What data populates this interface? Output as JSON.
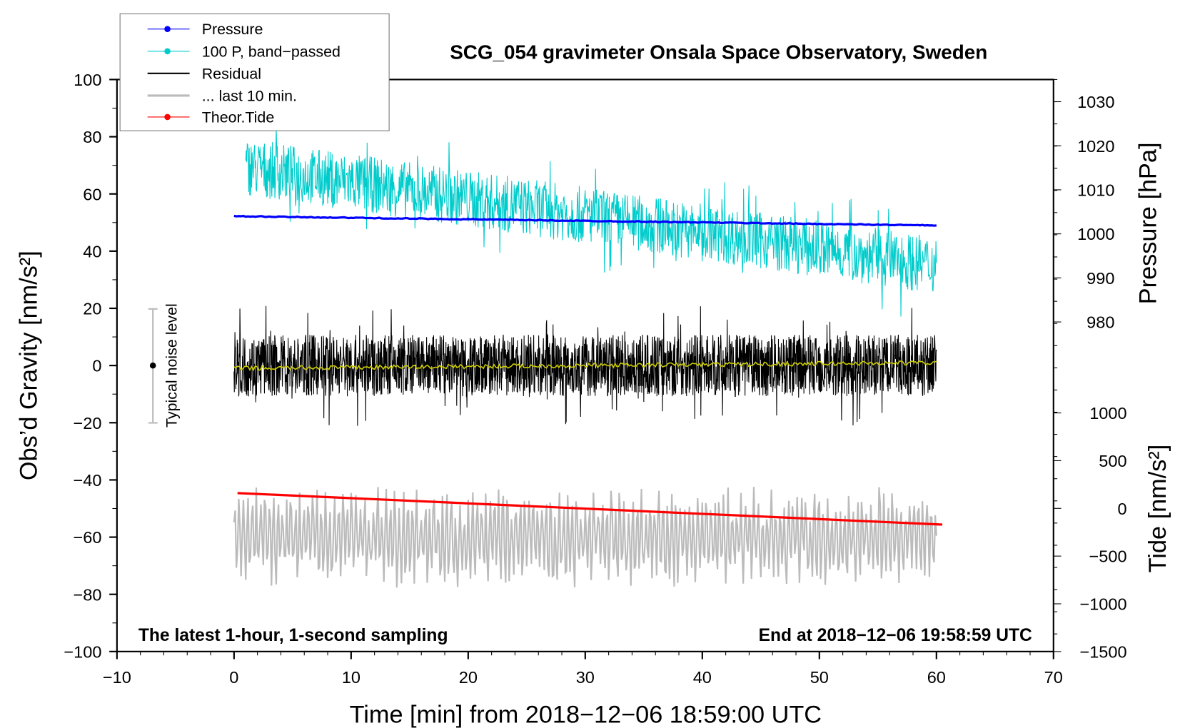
{
  "chart_data": {
    "type": "line",
    "title": "SCG_054 gravimeter Onsala Space Observatory, Sweden",
    "xlabel": "Time [min] from 2018−12−06 18:59:00 UTC",
    "ylabel_left": "Obs’d Gravity [nm/s²]",
    "ylabel_right_top": "Pressure [hPa]",
    "ylabel_right_bottom": "Tide [nm/s²]",
    "xlim": [
      -10,
      70
    ],
    "ylim": [
      -100,
      100
    ],
    "pressure_lim": [
      980,
      1030
    ],
    "tide_lim": [
      -1500,
      1000
    ],
    "xticks": [
      "−10",
      "0",
      "10",
      "20",
      "30",
      "40",
      "50",
      "60",
      "70"
    ],
    "yticks": [
      "100",
      "80",
      "60",
      "40",
      "20",
      "0",
      "−20",
      "−40",
      "−60",
      "−80",
      "−100"
    ],
    "pressure_ticks": [
      "1030",
      "1020",
      "1010",
      "1000",
      "990",
      "980"
    ],
    "tide_ticks": [
      "1000",
      "500",
      "0",
      "−500",
      "−1000",
      "−1500"
    ],
    "legend": {
      "placement": "top-left",
      "entries": [
        "Pressure",
        "100 P, band−passed",
        "Residual",
        "... last 10 min.",
        "Theor.Tide"
      ]
    },
    "annotations": {
      "left": "The latest 1-hour, 1-second sampling",
      "right": "End at 2018−12−06 19:58:59 UTC",
      "noise": "Typical noise level"
    },
    "noise_bar": {
      "x": -7,
      "center": 0,
      "range": [
        -20,
        20
      ]
    },
    "series": [
      {
        "name": "Pressure",
        "unit": "hPa",
        "x_range": [
          0,
          60
        ],
        "start": 1004.0,
        "end": 1001.9,
        "color": "#0000ff"
      },
      {
        "name": "100 P, band−passed",
        "unit": "nm/s2",
        "x_range": [
          1,
          60
        ],
        "start_mean": 70,
        "end_mean": 35,
        "noise_amplitude": 10,
        "color": "#00cccc"
      },
      {
        "name": "Residual",
        "unit": "nm/s2",
        "x_range": [
          0,
          60
        ],
        "mean": 0,
        "noise_amplitude": 12,
        "color": "#000000"
      },
      {
        "name": "Residual running mean",
        "unit": "nm/s2",
        "x_range": [
          0,
          60
        ],
        "start": -1,
        "end": 1,
        "color": "#cccc00"
      },
      {
        "name": "... last 10 min.",
        "unit": "nm/s2",
        "x_range": [
          0,
          60
        ],
        "mean": -60,
        "amplitude": 13,
        "color": "#bbbbbb"
      },
      {
        "name": "Theor.Tide",
        "unit": "nm/s2",
        "x_range": [
          0,
          60.5
        ],
        "start": 160,
        "end": -170,
        "color": "#ff0000"
      }
    ]
  }
}
